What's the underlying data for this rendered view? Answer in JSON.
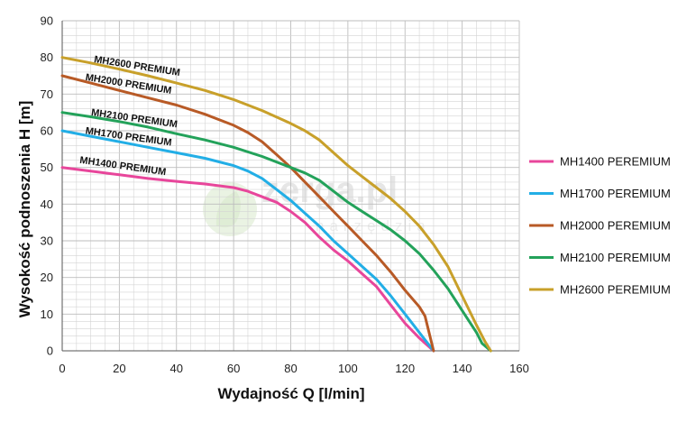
{
  "watermark": {
    "brand": "zerga.pl",
    "sub": "narzędzia"
  },
  "chart_data": {
    "type": "line",
    "title": "",
    "xlabel": "Wydajność Q [l/min]",
    "ylabel": "Wysokość podnoszenia H [m]",
    "xlim": [
      0,
      160
    ],
    "ylim": [
      0,
      90
    ],
    "xticks": [
      0,
      20,
      40,
      60,
      80,
      100,
      120,
      140,
      160
    ],
    "yticks": [
      0,
      10,
      20,
      30,
      40,
      50,
      60,
      70,
      80,
      90
    ],
    "grid": true,
    "legend_position": "right",
    "series": [
      {
        "name": "MH1400 PEREMIUM",
        "label": "MH1400 PREMIUM",
        "color": "#e8469b",
        "x": [
          0,
          10,
          20,
          30,
          40,
          50,
          60,
          65,
          70,
          75,
          80,
          85,
          90,
          95,
          100,
          105,
          110,
          115,
          120,
          125,
          130
        ],
        "y": [
          50,
          49,
          48,
          47,
          46.2,
          45.5,
          44.5,
          43.5,
          42,
          40.5,
          38,
          35,
          31,
          27.5,
          24.5,
          21,
          17.5,
          12.5,
          7.5,
          3.5,
          0
        ]
      },
      {
        "name": "MH1700 PEREMIUM",
        "label": "MH1700 PREMIUM",
        "color": "#22aee6",
        "x": [
          0,
          10,
          20,
          30,
          40,
          50,
          60,
          65,
          70,
          75,
          80,
          85,
          90,
          95,
          100,
          105,
          110,
          115,
          120,
          125,
          130
        ],
        "y": [
          60,
          58.5,
          57,
          55.5,
          54,
          52.5,
          50.5,
          49,
          47,
          44,
          41,
          37.5,
          34,
          30,
          26.5,
          23,
          19.5,
          15,
          10,
          5,
          0
        ]
      },
      {
        "name": "MH2000 PEREMIUM",
        "label": "MH2000 PREMIUM",
        "color": "#b85a26",
        "x": [
          0,
          10,
          20,
          30,
          40,
          50,
          60,
          65,
          70,
          75,
          80,
          85,
          90,
          95,
          100,
          105,
          110,
          115,
          120,
          125,
          127,
          130
        ],
        "y": [
          75,
          73,
          71,
          69,
          67,
          64.5,
          61.5,
          59.5,
          57,
          53.5,
          50,
          46,
          42,
          38,
          34,
          30,
          26,
          21.5,
          16.5,
          12,
          9.5,
          0
        ]
      },
      {
        "name": "MH2100 PEREMIUM",
        "label": "MH2100 PREMIUM",
        "color": "#23a25a",
        "x": [
          0,
          10,
          20,
          30,
          40,
          50,
          60,
          70,
          80,
          85,
          90,
          95,
          100,
          105,
          110,
          115,
          120,
          125,
          130,
          135,
          140,
          145,
          147,
          150
        ],
        "y": [
          65,
          63.8,
          62.5,
          61,
          59.2,
          57.5,
          55.5,
          53,
          50,
          48.5,
          46.5,
          43.5,
          40.5,
          38,
          35.5,
          33,
          30,
          26.5,
          22,
          17,
          11,
          5,
          2,
          0
        ]
      },
      {
        "name": "MH2600 PEREMIUM",
        "label": "MH2600 PREMIUM",
        "color": "#c8a02a",
        "x": [
          0,
          10,
          20,
          30,
          40,
          50,
          60,
          70,
          80,
          85,
          90,
          95,
          100,
          105,
          110,
          115,
          120,
          125,
          130,
          135,
          140,
          145,
          148,
          150
        ],
        "y": [
          80,
          78.5,
          76.8,
          75,
          73,
          71,
          68.5,
          65.5,
          62,
          60,
          57.5,
          54,
          50.5,
          47.5,
          44.5,
          41.5,
          38,
          34,
          29,
          23,
          15,
          7,
          2.5,
          0
        ]
      }
    ]
  }
}
